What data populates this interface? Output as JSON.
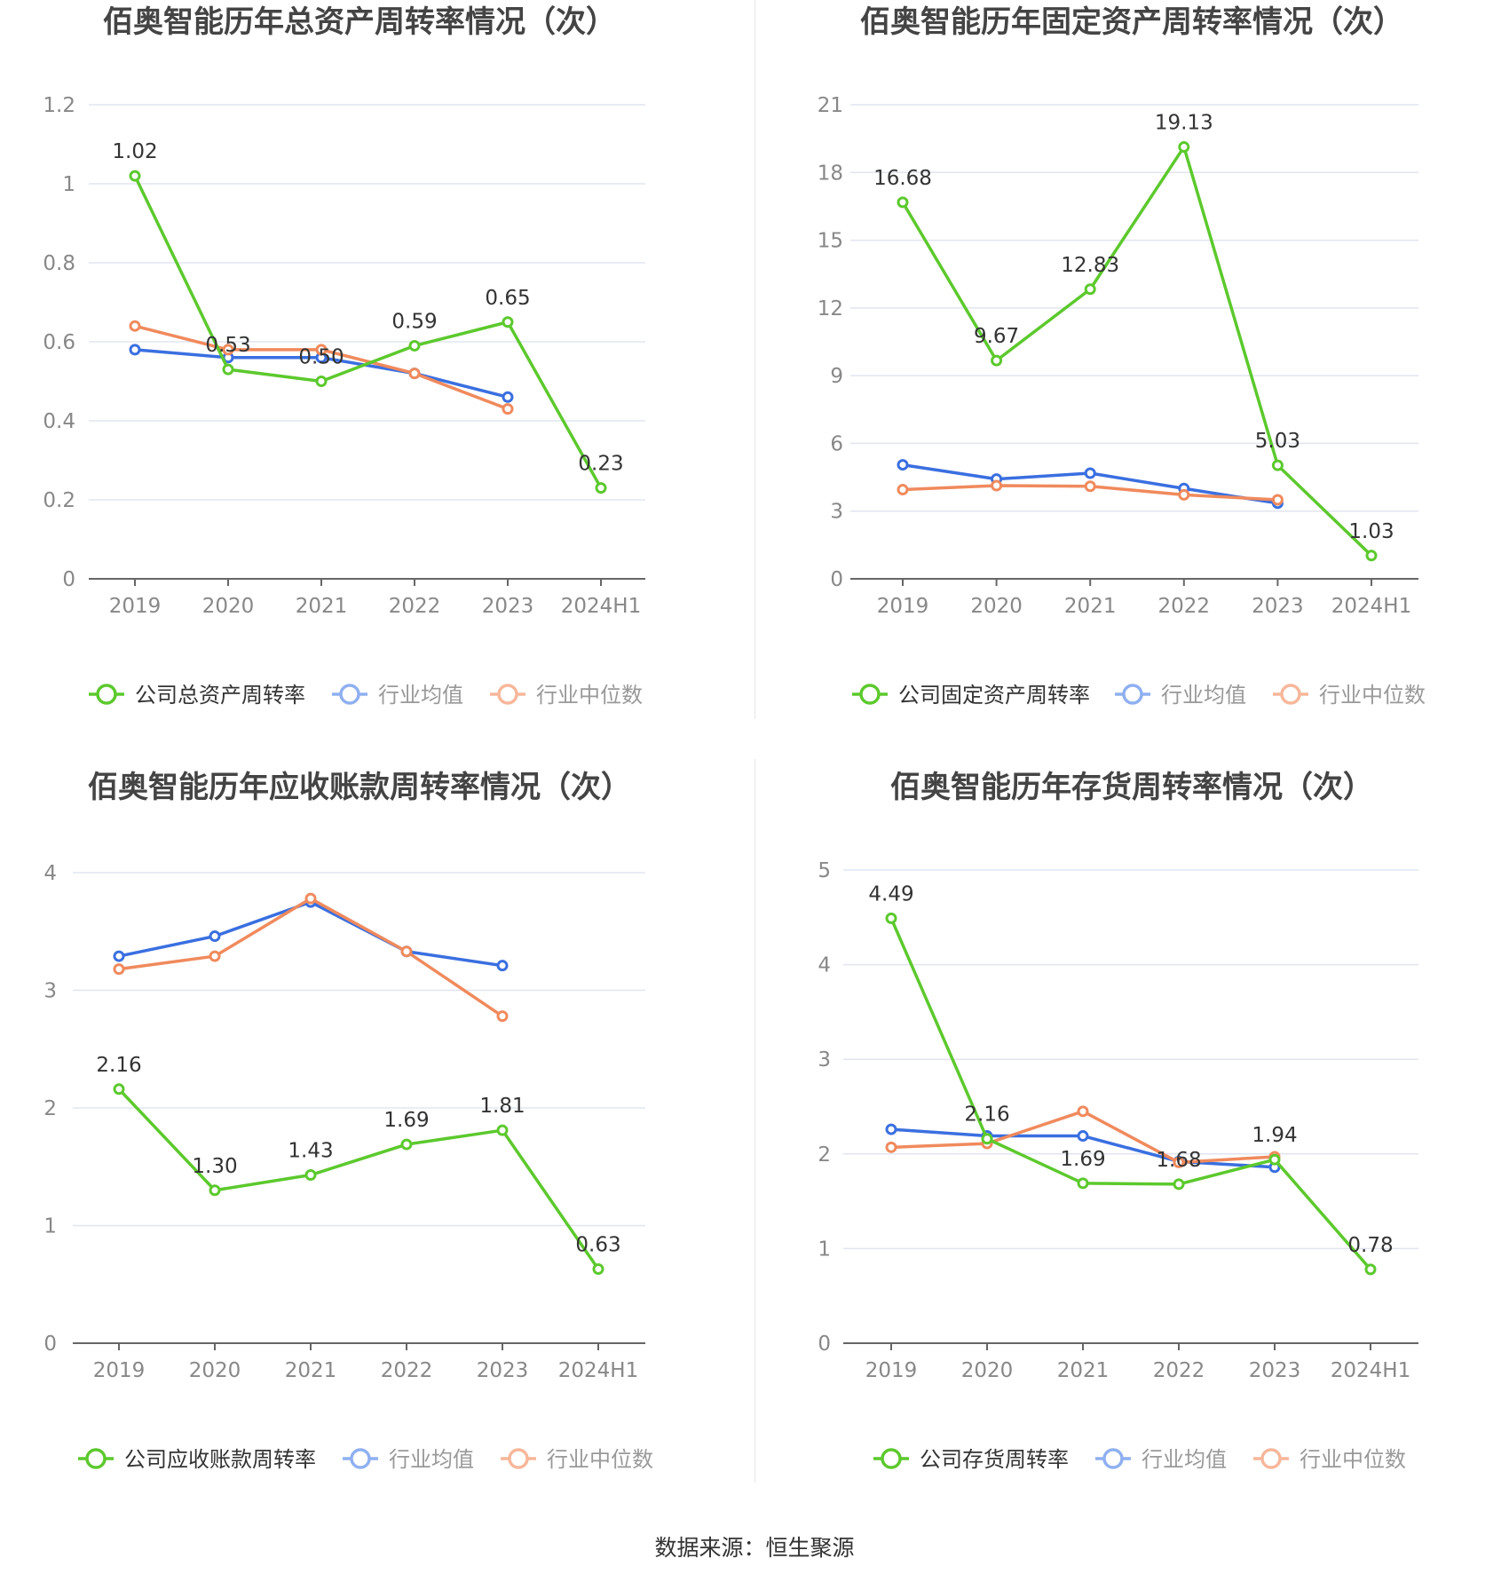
{
  "colors": {
    "company": "#5cc92d",
    "average": "#3a6fe0",
    "median": "#f08a5d",
    "average_legend": "#8fb0f0",
    "median_legend": "#f7b79a",
    "grid": "#e1e5f0",
    "axis": "#666666",
    "tick": "#888888",
    "label": "#333333",
    "title": "#444444"
  },
  "categories": [
    "2019",
    "2020",
    "2021",
    "2022",
    "2023",
    "2024H1"
  ],
  "source": "数据来源：恒生聚源",
  "chart_data": [
    {
      "type": "line",
      "title": "佰奥智能历年总资产周转率情况（次）",
      "categories": [
        "2019",
        "2020",
        "2021",
        "2022",
        "2023",
        "2024H1"
      ],
      "ylim": [
        0,
        1.2
      ],
      "yticks": [
        0,
        0.2,
        0.4,
        0.6,
        0.8,
        1,
        1.2
      ],
      "ytick_labels": [
        "0",
        "0.2",
        "0.4",
        "0.6",
        "0.8",
        "1",
        "1.2"
      ],
      "series": [
        {
          "name": "公司总资产周转率",
          "role": "company",
          "values": [
            1.02,
            0.53,
            0.5,
            0.59,
            0.65,
            0.23
          ],
          "labels": [
            "1.02",
            "0.53",
            "0.50",
            "0.59",
            "0.65",
            "0.23"
          ]
        },
        {
          "name": "行业均值",
          "role": "average",
          "values": [
            0.58,
            0.56,
            0.56,
            0.52,
            0.46,
            null
          ]
        },
        {
          "name": "行业中位数",
          "role": "median",
          "values": [
            0.64,
            0.58,
            0.58,
            0.52,
            0.43,
            null
          ]
        }
      ]
    },
    {
      "type": "line",
      "title": "佰奥智能历年固定资产周转率情况（次）",
      "categories": [
        "2019",
        "2020",
        "2021",
        "2022",
        "2023",
        "2024H1"
      ],
      "ylim": [
        0,
        21
      ],
      "yticks": [
        0,
        3,
        6,
        9,
        12,
        15,
        18,
        21
      ],
      "ytick_labels": [
        "0",
        "3",
        "6",
        "9",
        "12",
        "15",
        "18",
        "21"
      ],
      "series": [
        {
          "name": "公司固定资产周转率",
          "role": "company",
          "values": [
            16.68,
            9.67,
            12.83,
            19.13,
            5.03,
            1.03
          ],
          "labels": [
            "16.68",
            "9.67",
            "12.83",
            "19.13",
            "5.03",
            "1.03"
          ]
        },
        {
          "name": "行业均值",
          "role": "average",
          "values": [
            5.05,
            4.42,
            4.68,
            4.0,
            3.35,
            null
          ]
        },
        {
          "name": "行业中位数",
          "role": "median",
          "values": [
            3.95,
            4.13,
            4.1,
            3.72,
            3.5,
            null
          ]
        }
      ]
    },
    {
      "type": "line",
      "title": "佰奥智能历年应收账款周转率情况（次）",
      "categories": [
        "2019",
        "2020",
        "2021",
        "2022",
        "2023",
        "2024H1"
      ],
      "ylim": [
        0,
        4
      ],
      "yticks": [
        0,
        1,
        2,
        3,
        4
      ],
      "ytick_labels": [
        "0",
        "1",
        "2",
        "3",
        "4"
      ],
      "series": [
        {
          "name": "公司应收账款周转率",
          "role": "company",
          "values": [
            2.16,
            1.3,
            1.43,
            1.69,
            1.81,
            0.63
          ],
          "labels": [
            "2.16",
            "1.30",
            "1.43",
            "1.69",
            "1.81",
            "0.63"
          ]
        },
        {
          "name": "行业均值",
          "role": "average",
          "values": [
            3.29,
            3.46,
            3.75,
            3.33,
            3.21,
            null
          ]
        },
        {
          "name": "行业中位数",
          "role": "median",
          "values": [
            3.18,
            3.29,
            3.78,
            3.33,
            2.78,
            null
          ]
        }
      ]
    },
    {
      "type": "line",
      "title": "佰奥智能历年存货周转率情况（次）",
      "categories": [
        "2019",
        "2020",
        "2021",
        "2022",
        "2023",
        "2024H1"
      ],
      "ylim": [
        0,
        5
      ],
      "yticks": [
        0,
        1,
        2,
        3,
        4,
        5
      ],
      "ytick_labels": [
        "0",
        "1",
        "2",
        "3",
        "4",
        "5"
      ],
      "series": [
        {
          "name": "公司存货周转率",
          "role": "company",
          "values": [
            4.49,
            2.16,
            1.69,
            1.68,
            1.94,
            0.78
          ],
          "labels": [
            "4.49",
            "2.16",
            "1.69",
            "1.68",
            "1.94",
            "0.78"
          ]
        },
        {
          "name": "行业均值",
          "role": "average",
          "values": [
            2.26,
            2.19,
            2.19,
            1.92,
            1.86,
            null
          ]
        },
        {
          "name": "行业中位数",
          "role": "median",
          "values": [
            2.07,
            2.11,
            2.45,
            1.91,
            1.97,
            null
          ]
        }
      ]
    }
  ]
}
